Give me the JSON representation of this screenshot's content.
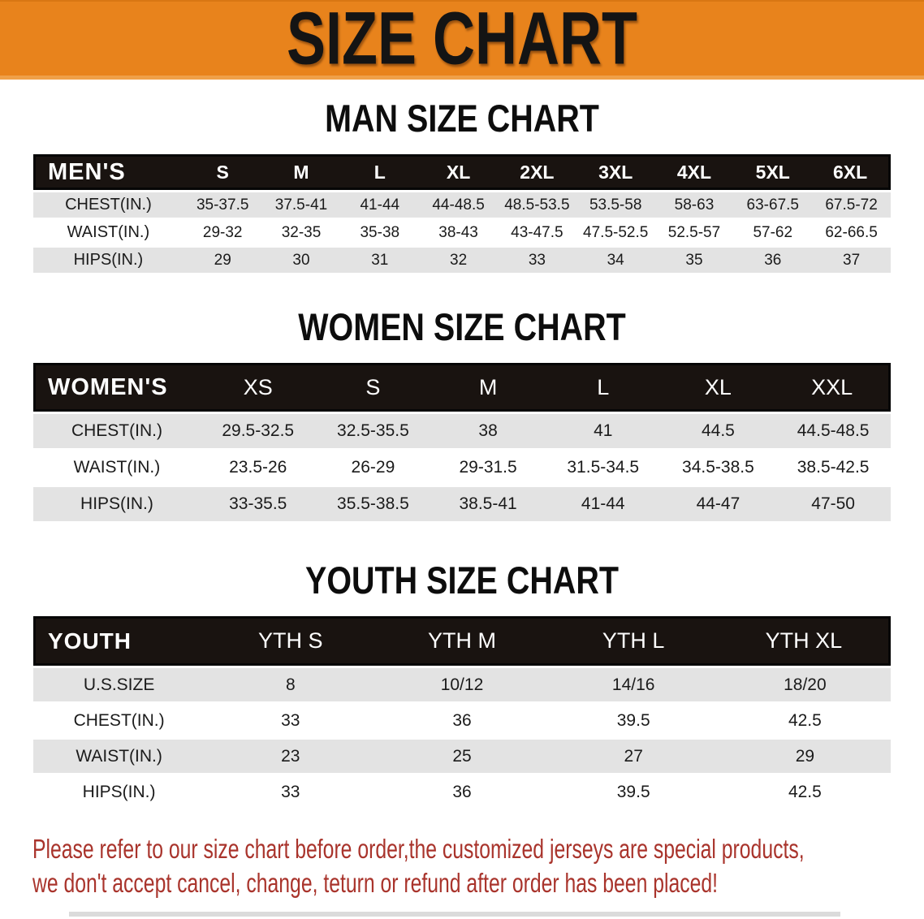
{
  "banner": {
    "title": "SIZE CHART"
  },
  "theme": {
    "banner_bg": "#E8831C",
    "header_row_bg": "#191310",
    "header_text_color": "#FFFFFF",
    "stripe_row_bg": "#E3E3E3",
    "disclaimer_color": "#A9342C"
  },
  "sections": [
    {
      "heading": "MAN SIZE CHART",
      "corner_label": "MEN'S",
      "columns": [
        "S",
        "M",
        "L",
        "XL",
        "2XL",
        "3XL",
        "4XL",
        "5XL",
        "6XL"
      ],
      "rows": [
        {
          "label": "CHEST(IN.)",
          "values": [
            "35-37.5",
            "37.5-41",
            "41-44",
            "44-48.5",
            "48.5-53.5",
            "53.5-58",
            "58-63",
            "63-67.5",
            "67.5-72"
          ]
        },
        {
          "label": "WAIST(IN.)",
          "values": [
            "29-32",
            "32-35",
            "35-38",
            "38-43",
            "43-47.5",
            "47.5-52.5",
            "52.5-57",
            "57-62",
            "62-66.5"
          ]
        },
        {
          "label": "HIPS(IN.)",
          "values": [
            "29",
            "30",
            "31",
            "32",
            "33",
            "34",
            "35",
            "36",
            "37"
          ]
        }
      ]
    },
    {
      "heading": "WOMEN SIZE CHART",
      "corner_label": "WOMEN'S",
      "columns": [
        "XS",
        "S",
        "M",
        "L",
        "XL",
        "XXL"
      ],
      "rows": [
        {
          "label": "CHEST(IN.)",
          "values": [
            "29.5-32.5",
            "32.5-35.5",
            "38",
            "41",
            "44.5",
            "44.5-48.5"
          ]
        },
        {
          "label": "WAIST(IN.)",
          "values": [
            "23.5-26",
            "26-29",
            "29-31.5",
            "31.5-34.5",
            "34.5-38.5",
            "38.5-42.5"
          ]
        },
        {
          "label": "HIPS(IN.)",
          "values": [
            "33-35.5",
            "35.5-38.5",
            "38.5-41",
            "41-44",
            "44-47",
            "47-50"
          ]
        }
      ]
    },
    {
      "heading": "YOUTH SIZE CHART",
      "corner_label": "YOUTH",
      "columns": [
        "YTH S",
        "YTH M",
        "YTH L",
        "YTH XL"
      ],
      "rows": [
        {
          "label": "U.S.SIZE",
          "values": [
            "8",
            "10/12",
            "14/16",
            "18/20"
          ]
        },
        {
          "label": "CHEST(IN.)",
          "values": [
            "33",
            "36",
            "39.5",
            "42.5"
          ]
        },
        {
          "label": "WAIST(IN.)",
          "values": [
            "23",
            "25",
            "27",
            "29"
          ]
        },
        {
          "label": "HIPS(IN.)",
          "values": [
            "33",
            "36",
            "39.5",
            "42.5"
          ]
        }
      ]
    }
  ],
  "disclaimer": {
    "line1": "Please refer to our size chart before order,the customized jerseys are special products,",
    "line2": "we don't accept cancel, change, teturn or refund after order has been placed!"
  }
}
